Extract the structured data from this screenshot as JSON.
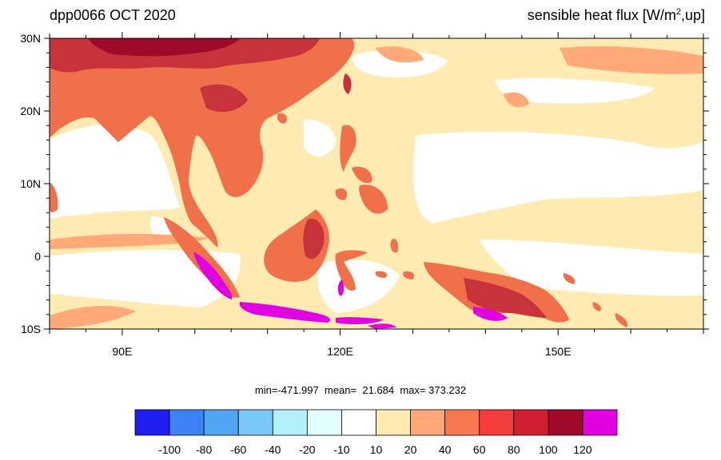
{
  "title_left": "dpp0066 OCT 2020",
  "title_right": {
    "prefix": "sensible heat flux [W/m",
    "sup": "2",
    "suffix": ",up]"
  },
  "axes": {
    "lat_ticks": [
      "30N",
      "20N",
      "10N",
      "0",
      "10S"
    ],
    "lon_ticks": [
      "90E",
      "120E",
      "150E"
    ],
    "lat_range": [
      -10,
      30
    ],
    "lon_range": [
      80,
      170
    ]
  },
  "stats": {
    "min_label": "min=",
    "min": "-471.997",
    "mean_label": "mean=",
    "mean": "21.684",
    "max_label": "max=",
    "max": "373.232"
  },
  "colorbar": {
    "colors": [
      "#1e1ef0",
      "#3c82f5",
      "#50a5f5",
      "#78c8fa",
      "#b4f0fa",
      "#e1ffff",
      "#ffffff",
      "#ffeab2",
      "#ffaa78",
      "#fa7850",
      "#f53c3c",
      "#d21e32",
      "#a00a28",
      "#e100e1"
    ],
    "labels": [
      "-100",
      "-80",
      "-60",
      "-40",
      "-20",
      "-10",
      "10",
      "20",
      "40",
      "60",
      "80",
      "100",
      "120"
    ]
  },
  "palette": {
    "land_base": "#f0704a",
    "land_high": "#c8323a",
    "land_very_high": "#a00a28",
    "land_extreme": "#e100e1",
    "ocean_light": "#ffeab2",
    "ocean_mid": "#ffaa78",
    "ocean_low": "#ffffff"
  }
}
